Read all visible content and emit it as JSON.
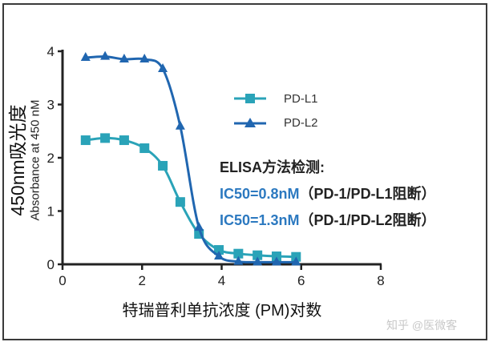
{
  "chart_data": {
    "type": "line",
    "title": "",
    "xlabel": "特瑞普利单抗浓度 (PM)对数",
    "ylabel": "450nm吸光度",
    "ylabel_sub": "Absorbance at 450 nM",
    "xlim": [
      0,
      8
    ],
    "ylim": [
      0,
      4
    ],
    "xticks": [
      0,
      2,
      4,
      6,
      8
    ],
    "yticks": [
      0,
      1,
      2,
      3,
      4
    ],
    "grid": false,
    "legend_position": "upper right (inside)",
    "x": [
      0.58,
      1.07,
      1.55,
      2.06,
      2.52,
      2.96,
      3.43,
      3.93,
      4.42,
      4.9,
      5.38,
      5.87
    ],
    "series": [
      {
        "name": "PD-L1",
        "marker": "square",
        "color": "#2aa3b8",
        "values": [
          2.33,
          2.37,
          2.33,
          2.18,
          1.85,
          1.17,
          0.57,
          0.27,
          0.2,
          0.17,
          0.15,
          0.14
        ]
      },
      {
        "name": "PD-L2",
        "marker": "triangle",
        "color": "#2066b0",
        "values": [
          3.88,
          3.9,
          3.85,
          3.85,
          3.67,
          2.59,
          0.69,
          0.15,
          0.05,
          0.04,
          0.04,
          0.04
        ]
      }
    ],
    "annotations": [
      "ELISA方法检测:",
      "IC50=0.8nM （PD-1/PD-L1阻断）",
      "IC50=1.3nM （PD-1/PD-L2阻断）"
    ]
  },
  "annotation": {
    "title": "ELISA方法检测:",
    "rows": [
      {
        "ic50": "IC50=0.8nM",
        "note": "（PD-1/PD-L1阻断）"
      },
      {
        "ic50": "IC50=1.3nM",
        "note": "（PD-1/PD-L2阻断）"
      }
    ]
  },
  "legend": [
    {
      "label": "PD-L1"
    },
    {
      "label": "PD-L2"
    }
  ],
  "watermark": "知乎 @医微客"
}
